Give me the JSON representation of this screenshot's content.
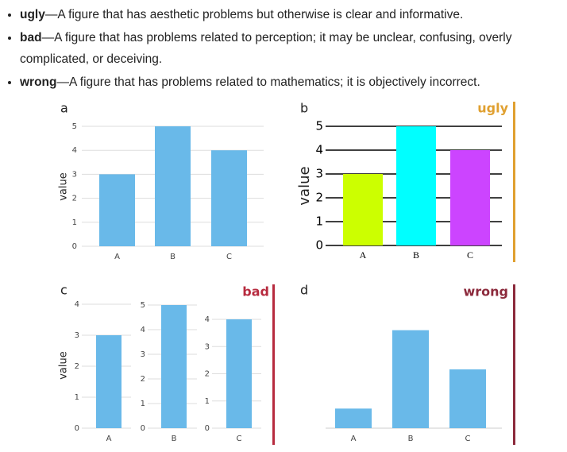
{
  "bullets": [
    {
      "term": "ugly",
      "text": "—A figure that has aesthetic problems but otherwise is clear and informative."
    },
    {
      "term": "bad",
      "text": "—A figure that has problems related to perception; it may be unclear, confusing, overly complicated, or deceiving."
    },
    {
      "term": "wrong",
      "text": "—A figure that has problems related to mathematics; it is objectively incorrect."
    }
  ],
  "chart_data": [
    {
      "type": "bar",
      "panel_label": "a",
      "ylabel": "value",
      "categories": [
        "A",
        "B",
        "C"
      ],
      "values": [
        3,
        5,
        4
      ],
      "color": "#69b9e9",
      "ylim": [
        0,
        5
      ],
      "yticks": [
        0,
        1,
        2,
        3,
        4,
        5
      ],
      "grid": true
    },
    {
      "type": "bar",
      "panel_label": "b",
      "badge": "ugly",
      "badge_color": "#e0a030",
      "ylabel": "value",
      "categories": [
        "A",
        "B",
        "C"
      ],
      "values": [
        3,
        5,
        4
      ],
      "colors": [
        "#ccff00",
        "#00ffff",
        "#cc44ff"
      ],
      "ylim": [
        0,
        5
      ],
      "yticks": [
        0,
        1,
        2,
        3,
        4,
        5
      ],
      "grid": true
    },
    {
      "type": "multi-bar",
      "panel_label": "c",
      "badge": "bad",
      "badge_color": "#b72b3f",
      "ylabel": "value",
      "color": "#69b9e9",
      "panels": [
        {
          "categories": [
            "A"
          ],
          "values": [
            3
          ],
          "ylim": [
            0,
            4
          ],
          "yticks": [
            0,
            1,
            2,
            3,
            4
          ]
        },
        {
          "categories": [
            "B"
          ],
          "values": [
            5
          ],
          "ylim": [
            0,
            5
          ],
          "yticks": [
            0,
            1,
            2,
            3,
            4,
            5
          ]
        },
        {
          "categories": [
            "C"
          ],
          "values": [
            4
          ],
          "ylim": [
            0,
            4
          ],
          "yticks": [
            0,
            1,
            2,
            3,
            4
          ]
        }
      ]
    },
    {
      "type": "bar",
      "panel_label": "d",
      "badge": "wrong",
      "badge_color": "#8c2a3c",
      "categories": [
        "A",
        "B",
        "C"
      ],
      "values": [
        3,
        5,
        4
      ],
      "color": "#69b9e9",
      "ylim": [
        2.5,
        5.5
      ],
      "grid": false
    }
  ]
}
